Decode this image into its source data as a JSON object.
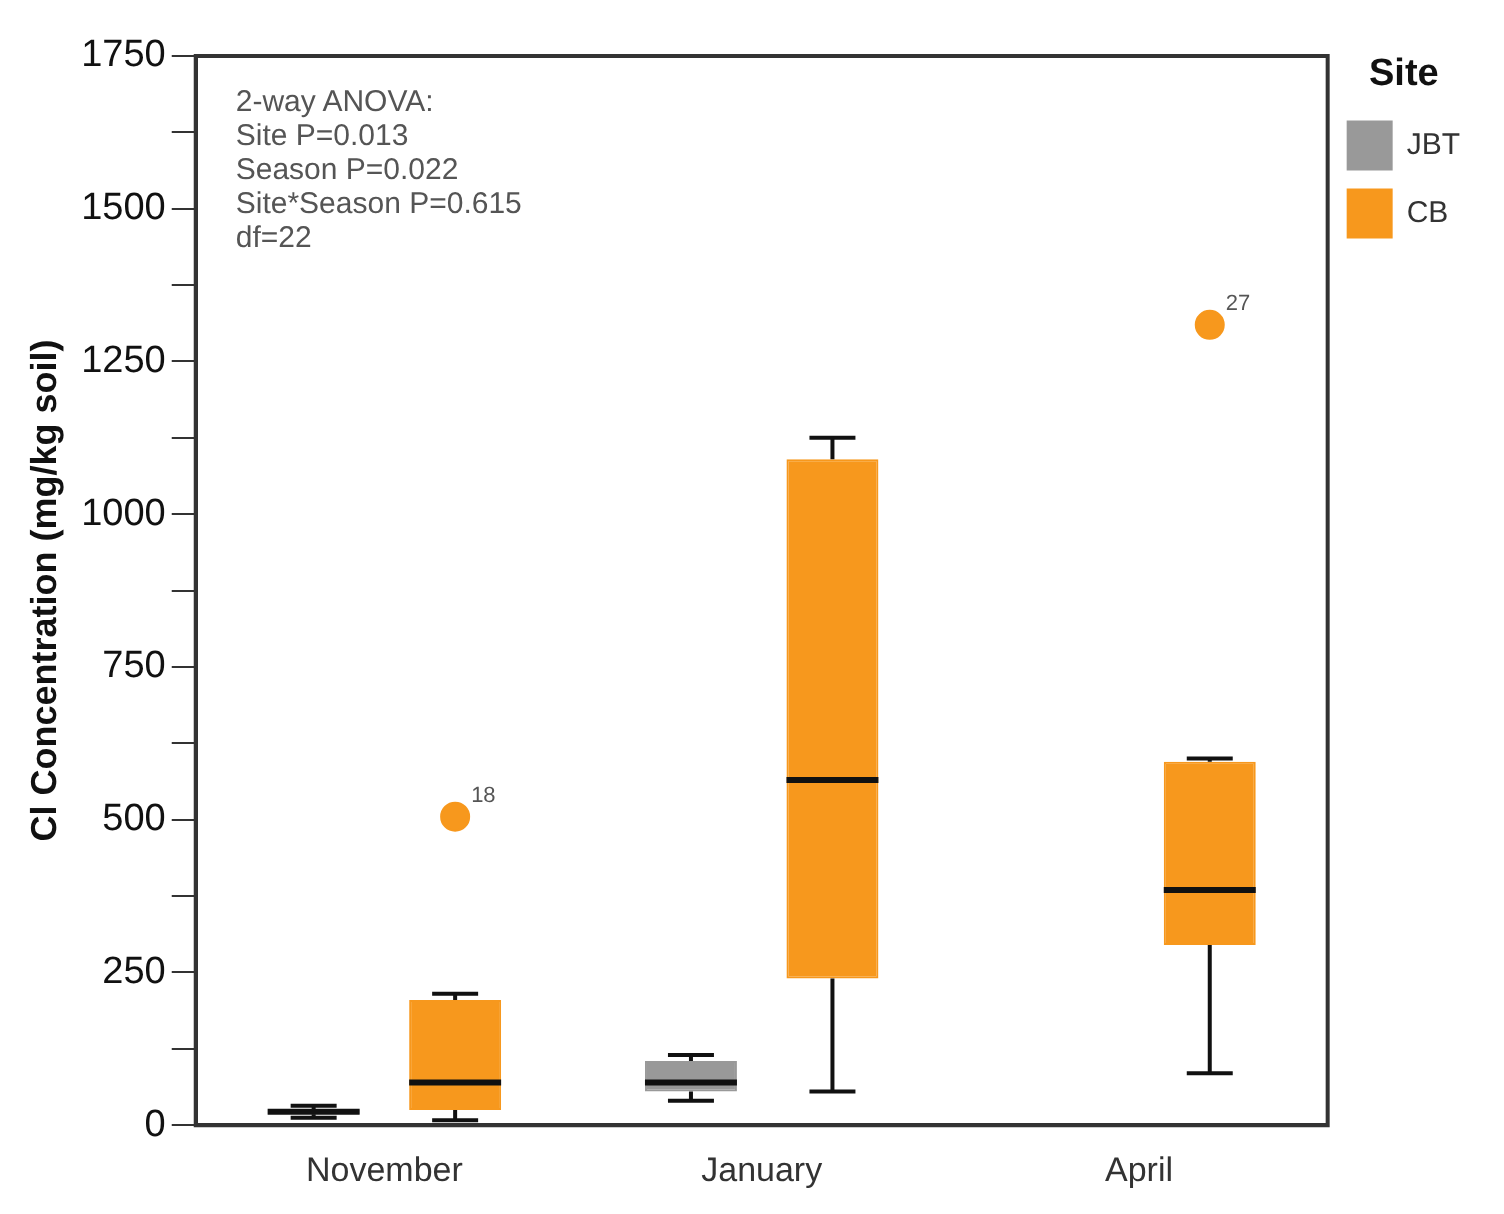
{
  "chart_data": {
    "type": "box",
    "ylabel": "Cl Concentration (mg/kg soil)",
    "legend_title": "Site",
    "categories": [
      "November",
      "January",
      "April"
    ],
    "series": [
      {
        "name": "JBT",
        "color": "#999999",
        "boxes": [
          {
            "low": 12,
            "q1": 18,
            "median": 22,
            "q3": 26,
            "high": 32
          },
          {
            "low": 40,
            "q1": 55,
            "median": 70,
            "q3": 105,
            "high": 115
          },
          null
        ]
      },
      {
        "name": "CB",
        "color": "#f7981d",
        "boxes": [
          {
            "low": 8,
            "q1": 25,
            "median": 70,
            "q3": 205,
            "high": 215,
            "outliers": [
              505
            ]
          },
          {
            "low": 55,
            "q1": 240,
            "median": 565,
            "q3": 1090,
            "high": 1125
          },
          {
            "low": 85,
            "q1": 295,
            "median": 385,
            "q3": 595,
            "high": 600,
            "outliers": [
              1310
            ]
          }
        ]
      }
    ],
    "ylim": [
      0,
      1750
    ],
    "yticks": [
      0,
      {
        "value": 125,
        "label": null
      },
      250,
      {
        "value": 375,
        "label": null
      },
      500,
      {
        "value": 625,
        "label": null
      },
      750,
      {
        "value": 875,
        "label": null
      },
      1000,
      {
        "value": 1125,
        "label": null
      },
      1250,
      {
        "value": 1375,
        "label": null
      },
      1500,
      {
        "value": 1625,
        "label": null
      },
      1750
    ],
    "grid": false,
    "legend": "top right",
    "annotations": [
      "2-way ANOVA:",
      "Site P=0.013",
      "Season P=0.022",
      "Site*Season P=0.615",
      "df=22",
      "18",
      "27"
    ]
  }
}
